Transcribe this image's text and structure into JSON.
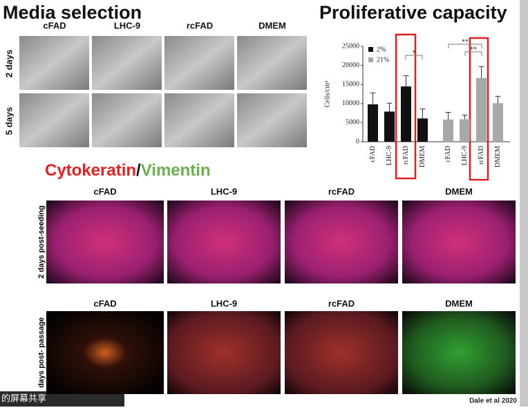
{
  "header": {
    "left_title": "Media selection",
    "right_title": "Proliferative capacity"
  },
  "media_selection": {
    "columns": [
      "cFAD",
      "LHC-9",
      "rcFAD",
      "DMEM"
    ],
    "rows": [
      "2 days",
      "5 days"
    ]
  },
  "staining": {
    "title_red": "Cytokeratin",
    "separator": "/",
    "title_green": "Vimentin",
    "rows": [
      {
        "label": "2 days post-seeding",
        "columns": [
          "cFAD",
          "LHC-9",
          "rcFAD",
          "DMEM"
        ]
      },
      {
        "label": "days post- passage",
        "columns": [
          "cFAD",
          "LHC-9",
          "rcFAD",
          "DMEM"
        ]
      }
    ]
  },
  "citation": "Dale et al 2020",
  "taskbar": {
    "text": "的屏幕共享"
  },
  "chart_data": {
    "type": "bar",
    "ylabel": "Cells/cm²",
    "categories": [
      "cFAD",
      "LHC-9",
      "rcFAD",
      "DMEM"
    ],
    "series": [
      {
        "name": "2%",
        "color": "#111111",
        "values": [
          9800,
          7900,
          14500,
          6100
        ],
        "errors": [
          3000,
          2200,
          2800,
          2500
        ]
      },
      {
        "name": "21%",
        "color": "#a8a8a8",
        "values": [
          5800,
          5900,
          16700,
          10100
        ],
        "errors": [
          1900,
          1100,
          3000,
          1800
        ]
      }
    ],
    "ylim": [
      0,
      25000
    ],
    "yticks": [
      0,
      5000,
      10000,
      15000,
      20000,
      25000
    ],
    "annotations": [
      "*",
      "**",
      "**"
    ]
  }
}
